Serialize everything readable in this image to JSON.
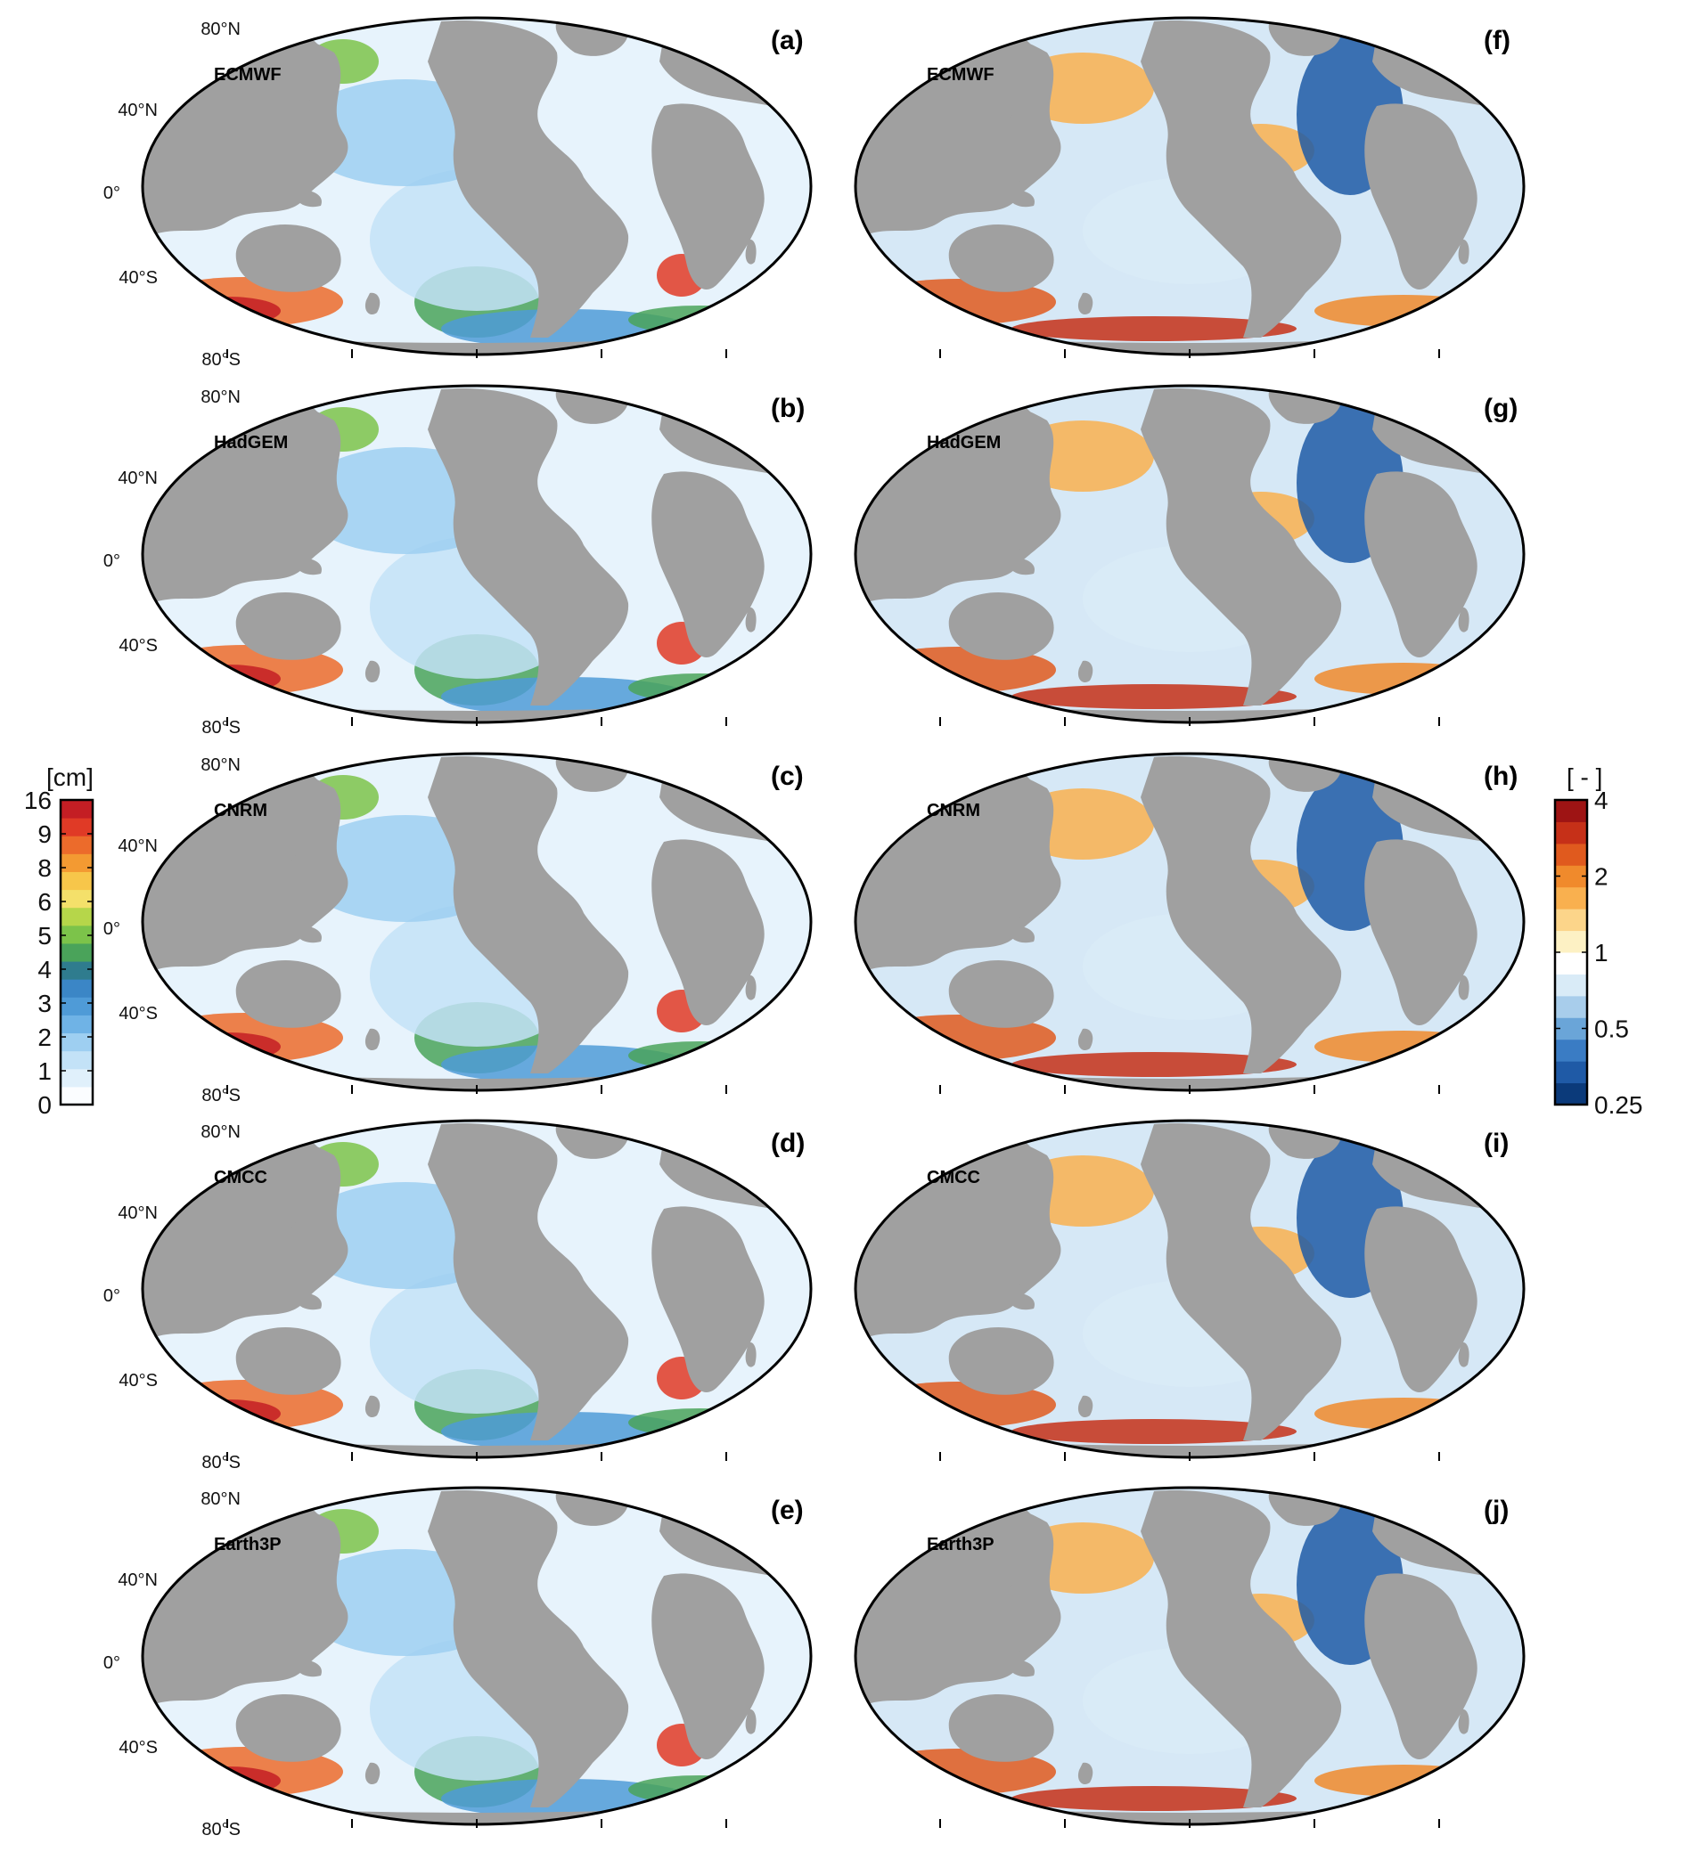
{
  "figure": {
    "lat_labels": [
      "80°N",
      "40°N",
      "0°",
      "40°S",
      "80°S"
    ],
    "panels": [
      {
        "letter": "(a)",
        "model": "ECMWF",
        "quantity": "cm"
      },
      {
        "letter": "(b)",
        "model": "HadGEM",
        "quantity": "cm"
      },
      {
        "letter": "(c)",
        "model": "CNRM",
        "quantity": "cm"
      },
      {
        "letter": "(d)",
        "model": "CMCC",
        "quantity": "cm"
      },
      {
        "letter": "(e)",
        "model": "Earth3P",
        "quantity": "cm"
      },
      {
        "letter": "(f)",
        "model": "ECMWF",
        "quantity": "ratio"
      },
      {
        "letter": "(g)",
        "model": "HadGEM",
        "quantity": "ratio"
      },
      {
        "letter": "(h)",
        "model": "CNRM",
        "quantity": "ratio"
      },
      {
        "letter": "(i)",
        "model": "CMCC",
        "quantity": "ratio"
      },
      {
        "letter": "(j)",
        "model": "Earth3P",
        "quantity": "ratio"
      }
    ],
    "colorbar_left": {
      "unit": "[cm]",
      "ticks": [
        "16",
        "9",
        "8",
        "6",
        "5",
        "4",
        "3",
        "2",
        "1",
        "0"
      ],
      "colors": [
        "#fbfdff",
        "#e0f0fb",
        "#c3e2f7",
        "#9ecff1",
        "#6fb3e6",
        "#4f9bd7",
        "#3b86c6",
        "#2f7c8e",
        "#4aa35a",
        "#7cc34a",
        "#b6d64a",
        "#f4e06a",
        "#f7c64a",
        "#f39a32",
        "#ec6b2b",
        "#e03a26",
        "#c41e24"
      ]
    },
    "colorbar_right": {
      "unit": "[ - ]",
      "ticks": [
        "4",
        "2",
        "1",
        "0.5",
        "0.25"
      ],
      "colors": [
        "#0b3a7a",
        "#1f5aa6",
        "#3a7cc4",
        "#6aa5d8",
        "#a8cdeb",
        "#d9ebf7",
        "#ffffff",
        "#fdf1c4",
        "#fcd58a",
        "#f9b04f",
        "#f08a2c",
        "#e05a1e",
        "#c63018",
        "#9e1414"
      ]
    },
    "colors": {
      "land": "#a0a0a0",
      "ocean_left": "#e7f3fc",
      "ocean_right": "#d6e8f6",
      "coast": "#000000"
    }
  }
}
